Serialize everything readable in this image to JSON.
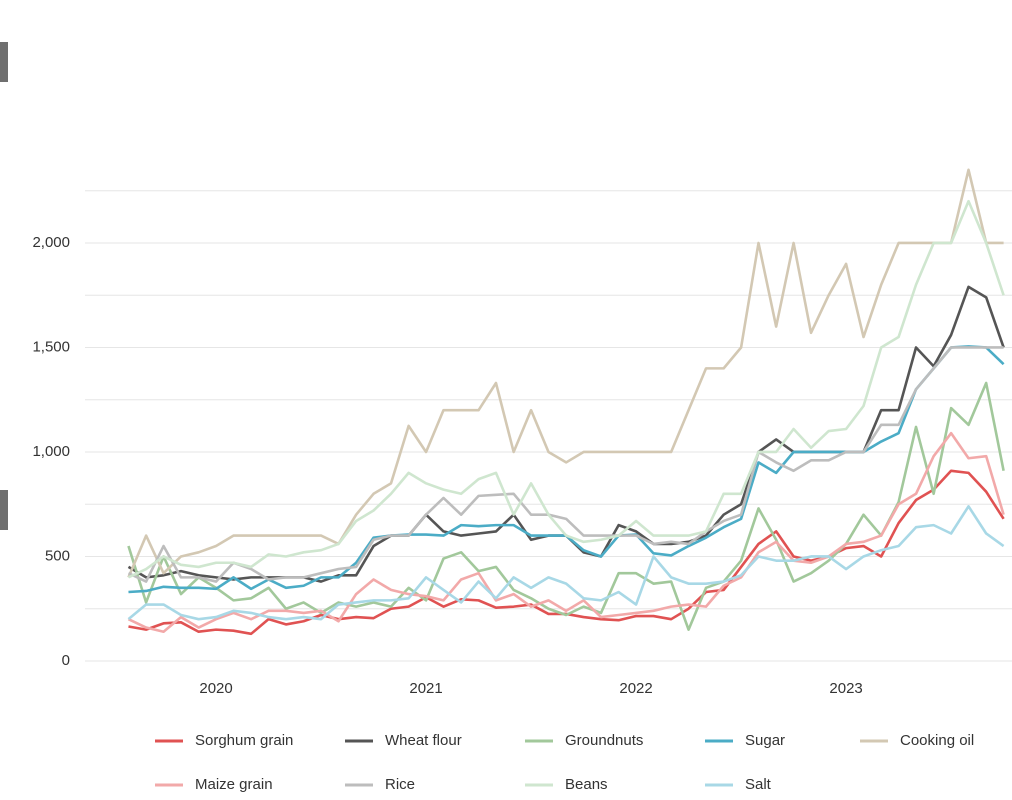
{
  "chart_data": {
    "type": "line",
    "x": [
      2019.583,
      2019.667,
      2019.75,
      2019.833,
      2019.917,
      2020,
      2020.083,
      2020.167,
      2020.25,
      2020.333,
      2020.417,
      2020.5,
      2020.583,
      2020.667,
      2020.75,
      2020.833,
      2020.917,
      2021,
      2021.083,
      2021.167,
      2021.25,
      2021.333,
      2021.417,
      2021.5,
      2021.583,
      2021.667,
      2021.75,
      2021.833,
      2021.917,
      2022,
      2022.083,
      2022.167,
      2022.25,
      2022.333,
      2022.417,
      2022.5,
      2022.583,
      2022.667,
      2022.75,
      2022.833,
      2022.917,
      2023,
      2023.083,
      2023.167,
      2023.25,
      2023.333,
      2023.417,
      2023.5,
      2023.583,
      2023.667,
      2023.75
    ],
    "xlim": [
      2019.376,
      2023.79
    ],
    "xticks": [
      2020,
      2021,
      2022,
      2023
    ],
    "ylim": [
      -91,
      2397
    ],
    "yticks": [
      0,
      500,
      {
        "value": 1000,
        "label": "1,000"
      },
      {
        "value": 1500,
        "label": "1,500"
      },
      {
        "value": 2000,
        "label": "2,000"
      }
    ],
    "minor_yticks": [
      250,
      750,
      1250,
      1750,
      2250
    ],
    "grid": true,
    "series": [
      {
        "name": "Sorghum grain",
        "color": "#e05252",
        "values": [
          165,
          150,
          180,
          185,
          140,
          150,
          145,
          130,
          200,
          175,
          190,
          220,
          200,
          210,
          205,
          250,
          260,
          305,
          260,
          295,
          290,
          255,
          260,
          270,
          225,
          225,
          210,
          200,
          195,
          215,
          215,
          200,
          250,
          330,
          340,
          450,
          560,
          620,
          500,
          480,
          500,
          540,
          550,
          500,
          660,
          770,
          820,
          910,
          900,
          810,
          680
        ]
      },
      {
        "name": "Wheat flour",
        "color": "#555555",
        "values": [
          450,
          400,
          410,
          430,
          410,
          400,
          390,
          400,
          400,
          400,
          400,
          380,
          410,
          410,
          550,
          600,
          600,
          700,
          620,
          600,
          610,
          620,
          700,
          580,
          600,
          600,
          520,
          500,
          650,
          620,
          560,
          560,
          570,
          600,
          700,
          750,
          1000,
          1060,
          1000,
          1000,
          1000,
          1000,
          1000,
          1200,
          1200,
          1500,
          1410,
          1560,
          1790,
          1740,
          1500
        ]
      },
      {
        "name": "Groundnuts",
        "color": "#a2c89b",
        "values": [
          550,
          280,
          500,
          320,
          400,
          350,
          290,
          300,
          350,
          250,
          280,
          230,
          280,
          260,
          280,
          260,
          350,
          290,
          490,
          520,
          430,
          450,
          340,
          300,
          250,
          220,
          260,
          230,
          420,
          420,
          370,
          380,
          150,
          350,
          380,
          480,
          730,
          580,
          380,
          420,
          480,
          560,
          700,
          600,
          760,
          1120,
          800,
          1210,
          1130,
          1330,
          910
        ]
      },
      {
        "name": "Sugar",
        "color": "#4bacc6",
        "values": [
          330,
          335,
          355,
          350,
          350,
          345,
          400,
          345,
          390,
          350,
          360,
          400,
          400,
          470,
          590,
          600,
          605,
          605,
          600,
          650,
          645,
          650,
          650,
          600,
          600,
          600,
          530,
          500,
          600,
          605,
          515,
          505,
          550,
          590,
          640,
          680,
          950,
          900,
          1000,
          1000,
          1000,
          1000,
          1000,
          1050,
          1090,
          1300,
          1400,
          1500,
          1505,
          1500,
          1420
        ]
      },
      {
        "name": "Cooking oil",
        "color": "#d3c8b3",
        "values": [
          400,
          600,
          420,
          500,
          520,
          550,
          600,
          600,
          600,
          600,
          600,
          600,
          560,
          700,
          800,
          850,
          1125,
          1000,
          1200,
          1200,
          1200,
          1330,
          1000,
          1200,
          1000,
          950,
          1000,
          1000,
          1000,
          1000,
          1000,
          1000,
          1200,
          1400,
          1400,
          1500,
          2000,
          1600,
          2000,
          1570,
          1750,
          1900,
          1550,
          1800,
          2000,
          2000,
          2000,
          2000,
          2350,
          2000,
          2000
        ]
      },
      {
        "name": "Maize grain",
        "color": "#f2a9a9",
        "values": [
          200,
          160,
          140,
          210,
          160,
          200,
          230,
          200,
          240,
          240,
          230,
          240,
          190,
          320,
          390,
          340,
          320,
          310,
          290,
          390,
          420,
          290,
          320,
          260,
          290,
          240,
          290,
          210,
          220,
          230,
          240,
          260,
          270,
          260,
          360,
          400,
          520,
          570,
          480,
          470,
          500,
          560,
          570,
          600,
          750,
          800,
          980,
          1090,
          970,
          980,
          700
        ]
      },
      {
        "name": "Rice",
        "color": "#bdbdbd",
        "values": [
          420,
          380,
          550,
          400,
          400,
          380,
          470,
          440,
          390,
          400,
          400,
          420,
          440,
          450,
          580,
          600,
          600,
          700,
          780,
          700,
          790,
          795,
          800,
          700,
          700,
          680,
          600,
          600,
          600,
          600,
          560,
          570,
          560,
          620,
          670,
          700,
          1000,
          950,
          910,
          960,
          960,
          1000,
          1000,
          1130,
          1130,
          1300,
          1400,
          1500,
          1500,
          1500,
          1500
        ]
      },
      {
        "name": "Beans",
        "color": "#cfe6cf",
        "values": [
          400,
          440,
          500,
          460,
          450,
          470,
          470,
          450,
          510,
          500,
          520,
          530,
          560,
          670,
          720,
          800,
          900,
          850,
          820,
          800,
          870,
          900,
          700,
          850,
          700,
          600,
          570,
          580,
          600,
          670,
          600,
          600,
          600,
          620,
          800,
          800,
          1000,
          1000,
          1110,
          1020,
          1100,
          1110,
          1220,
          1500,
          1550,
          1800,
          2000,
          2000,
          2200,
          2000,
          1750
        ]
      },
      {
        "name": "Salt",
        "color": "#a8d8e6",
        "values": [
          200,
          270,
          270,
          220,
          200,
          210,
          240,
          230,
          210,
          200,
          210,
          200,
          270,
          280,
          290,
          290,
          300,
          400,
          340,
          280,
          380,
          300,
          400,
          350,
          400,
          370,
          300,
          290,
          330,
          270,
          500,
          400,
          370,
          370,
          380,
          410,
          500,
          480,
          480,
          500,
          500,
          440,
          500,
          530,
          550,
          640,
          650,
          610,
          740,
          610,
          550
        ]
      }
    ]
  }
}
